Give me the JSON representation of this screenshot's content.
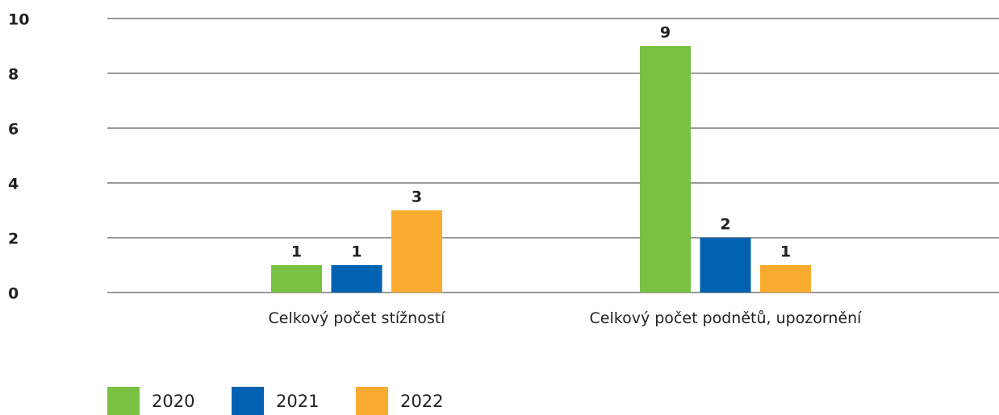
{
  "chart_data": {
    "type": "bar",
    "categories": [
      "Celkový počet stížností",
      "Celkový počet podnětů, upozornění"
    ],
    "series": [
      {
        "name": "2020",
        "color": "#7ac143",
        "values": [
          1,
          9
        ]
      },
      {
        "name": "2021",
        "color": "#0062b1",
        "values": [
          1,
          2
        ]
      },
      {
        "name": "2022",
        "color": "#f9ab30",
        "values": [
          3,
          1
        ]
      }
    ],
    "ylim": [
      0,
      10
    ],
    "yticks": [
      0,
      2,
      4,
      6,
      8,
      10
    ],
    "grid": true,
    "legend": "bottom-left"
  }
}
